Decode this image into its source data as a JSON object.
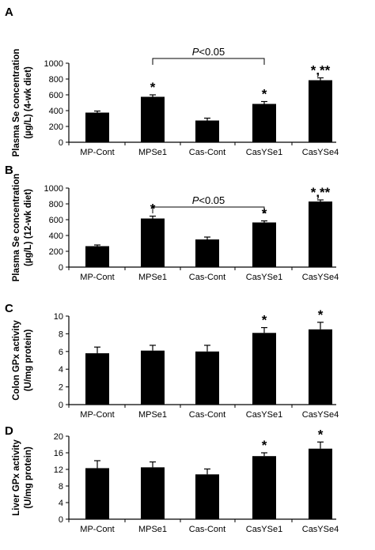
{
  "chart_data": [
    {
      "type": "bar",
      "panel": "A",
      "ylabel_lines": [
        "Plasma Se concentration",
        "(µg/L) (4-wk diet)"
      ],
      "categories": [
        "MP-Cont",
        "MPSe1",
        "Cas-Cont",
        "CasYSe1",
        "CasYSe4"
      ],
      "values": [
        375,
        575,
        275,
        485,
        785
      ],
      "errors": [
        20,
        25,
        30,
        30,
        30
      ],
      "ylim": [
        0,
        1000
      ],
      "yticks": [
        0,
        200,
        400,
        600,
        800,
        1000
      ],
      "significance": [
        "",
        "*",
        "",
        "*",
        "*,**"
      ],
      "comparison": {
        "from": 1,
        "to": 3,
        "label_italic": "P",
        "label_rest": "<0.05"
      }
    },
    {
      "type": "bar",
      "panel": "B",
      "ylabel_lines": [
        "Plasma Se concentration",
        "(µg/L) (12-wk diet)"
      ],
      "categories": [
        "MP-Cont",
        "MPSe1",
        "Cas-Cont",
        "CasYSe1",
        "CasYSe4"
      ],
      "values": [
        265,
        615,
        350,
        565,
        830
      ],
      "errors": [
        15,
        30,
        30,
        20,
        20
      ],
      "ylim": [
        0,
        1000
      ],
      "yticks": [
        0,
        200,
        400,
        600,
        800,
        1000
      ],
      "significance": [
        "",
        "*",
        "",
        "*",
        "*,**"
      ],
      "comparison": {
        "from": 1,
        "to": 3,
        "label_italic": "P",
        "label_rest": "<0.05"
      }
    },
    {
      "type": "bar",
      "panel": "C",
      "ylabel_lines": [
        "Colon GPx activity",
        "(U/mg protein)"
      ],
      "categories": [
        "MP-Cont",
        "MPSe1",
        "Cas-Cont",
        "CasYSe1",
        "CasYSe4"
      ],
      "values": [
        5.8,
        6.1,
        6.0,
        8.1,
        8.5
      ],
      "errors": [
        0.7,
        0.6,
        0.7,
        0.6,
        0.8
      ],
      "ylim": [
        0,
        10
      ],
      "yticks": [
        0,
        2,
        4,
        6,
        8,
        10
      ],
      "significance": [
        "",
        "",
        "",
        "*",
        "*"
      ]
    },
    {
      "type": "bar",
      "panel": "D",
      "ylabel_lines": [
        "Liver GPx activity",
        "(U/mg protein)"
      ],
      "categories": [
        "MP-Cont",
        "MPSe1",
        "Cas-Cont",
        "CasYSe1",
        "CasYSe4"
      ],
      "values": [
        12.3,
        12.5,
        10.8,
        15.2,
        17.0
      ],
      "errors": [
        1.8,
        1.3,
        1.3,
        0.8,
        1.6
      ],
      "ylim": [
        0,
        20
      ],
      "yticks": [
        0,
        4,
        8,
        12,
        16,
        20
      ],
      "significance": [
        "",
        "",
        "",
        "*",
        "*"
      ]
    }
  ]
}
